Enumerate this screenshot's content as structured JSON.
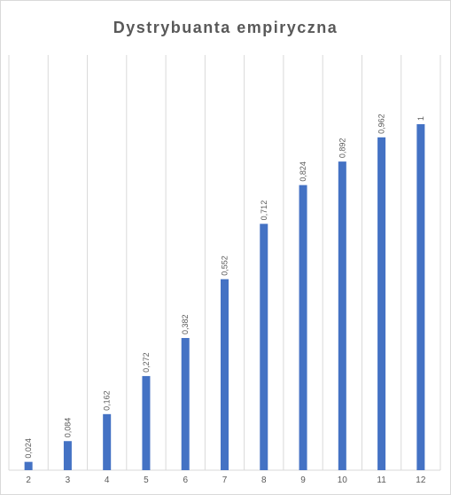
{
  "chart_data": {
    "type": "bar",
    "title": "Dystrybuanta empiryczna",
    "categories": [
      "2",
      "3",
      "4",
      "5",
      "6",
      "7",
      "8",
      "9",
      "10",
      "11",
      "12"
    ],
    "values": [
      0.024,
      0.084,
      0.162,
      0.272,
      0.382,
      0.552,
      0.712,
      0.824,
      0.892,
      0.962,
      1
    ],
    "data_labels": [
      "0,024",
      "0,084",
      "0,162",
      "0,272",
      "0,382",
      "0,552",
      "0,712",
      "0,824",
      "0,892",
      "0,962",
      "1"
    ],
    "ylim": [
      0,
      1
    ],
    "grid": "vertical",
    "legend": "none",
    "colors": {
      "bar": "#4472c4",
      "grid": "#d9d9d9",
      "text": "#595959"
    }
  }
}
